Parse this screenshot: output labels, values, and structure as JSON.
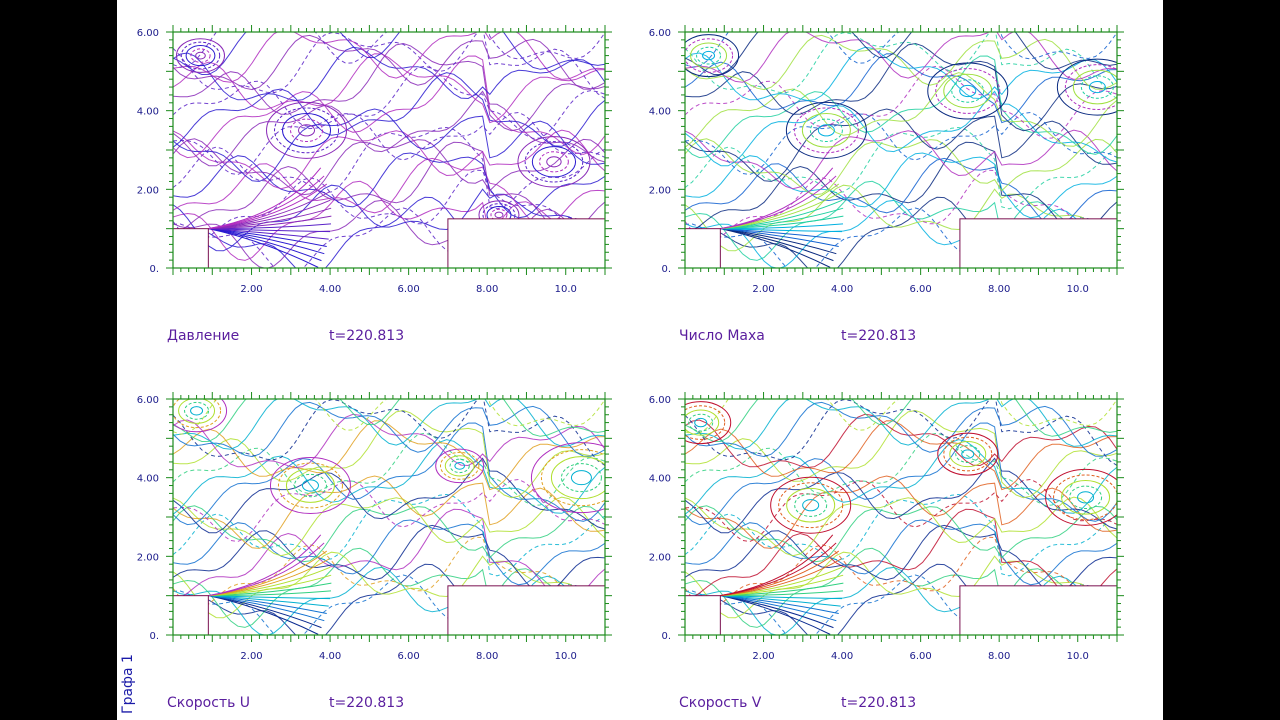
{
  "figure_side_label": "Графа 1",
  "chart_data": [
    {
      "type": "contour",
      "title": "Давление",
      "time_label": "t=220.813",
      "xlim": [
        0,
        11
      ],
      "ylim": [
        0,
        6
      ],
      "xticks": [
        "2.00",
        "4.00",
        "6.00",
        "8.00",
        "10.0"
      ],
      "yticks": [
        "0.",
        "2.00",
        "4.00",
        "6.00"
      ],
      "palette": [
        "#2a1ad0",
        "#5a22c8",
        "#8a2ab8",
        "#b02cc0"
      ],
      "hotspots": [
        [
          0.7,
          5.4,
          0.12
        ],
        [
          3.4,
          3.5,
          0.2
        ],
        [
          9.7,
          2.7,
          0.18
        ],
        [
          8.3,
          1.35,
          0.1
        ]
      ],
      "step": {
        "x": 7.0,
        "y": 1.25
      },
      "inlet": {
        "x": 0.9,
        "y": 1.0
      }
    },
    {
      "type": "contour",
      "title": "Число Маха",
      "time_label": "t=220.813",
      "xlim": [
        0,
        11
      ],
      "ylim": [
        0,
        6
      ],
      "xticks": [
        "2.00",
        "4.00",
        "6.00",
        "8.00",
        "10.0"
      ],
      "yticks": [
        "0.",
        "2.00",
        "4.00",
        "6.00"
      ],
      "palette": [
        "#0a2a80",
        "#1060d0",
        "#00b0e0",
        "#20d0a0",
        "#a0e040",
        "#b030c0"
      ],
      "hotspots": [
        [
          0.6,
          5.4,
          0.15
        ],
        [
          3.6,
          3.5,
          0.2
        ],
        [
          7.2,
          4.5,
          0.2
        ],
        [
          10.5,
          4.6,
          0.2
        ]
      ],
      "step": {
        "x": 7.0,
        "y": 1.25
      },
      "inlet": {
        "x": 0.9,
        "y": 1.0
      }
    },
    {
      "type": "contour",
      "title": "Скорость  U",
      "time_label": "t=220.813",
      "xlim": [
        0,
        11
      ],
      "ylim": [
        0,
        6
      ],
      "xticks": [
        "2.00",
        "4.00",
        "6.00",
        "8.00",
        "10.0"
      ],
      "yticks": [
        "0.",
        "2.00",
        "4.00",
        "6.00"
      ],
      "palette": [
        "#0a2a90",
        "#1070d0",
        "#00b0d0",
        "#30d080",
        "#b0e030",
        "#e0a020",
        "#b030c0"
      ],
      "hotspots": [
        [
          0.6,
          5.7,
          0.15
        ],
        [
          3.5,
          3.8,
          0.2
        ],
        [
          7.3,
          4.3,
          0.12
        ],
        [
          10.4,
          4.0,
          0.25
        ]
      ],
      "step": {
        "x": 7.0,
        "y": 1.25
      },
      "inlet": {
        "x": 0.9,
        "y": 1.0
      }
    },
    {
      "type": "contour",
      "title": "Скорость  V",
      "time_label": "t=220.813",
      "xlim": [
        0,
        11
      ],
      "ylim": [
        0,
        6
      ],
      "xticks": [
        "2.00",
        "4.00",
        "6.00",
        "8.00",
        "10.0"
      ],
      "yticks": [
        "0.",
        "2.00",
        "4.00",
        "6.00"
      ],
      "palette": [
        "#0a2a90",
        "#1070d0",
        "#00b0d0",
        "#30d080",
        "#b0e030",
        "#e06020",
        "#c01030"
      ],
      "hotspots": [
        [
          0.4,
          5.4,
          0.15
        ],
        [
          3.2,
          3.3,
          0.2
        ],
        [
          7.2,
          4.6,
          0.15
        ],
        [
          10.2,
          3.5,
          0.2
        ]
      ],
      "step": {
        "x": 7.0,
        "y": 1.25
      },
      "inlet": {
        "x": 0.9,
        "y": 1.0
      }
    }
  ]
}
